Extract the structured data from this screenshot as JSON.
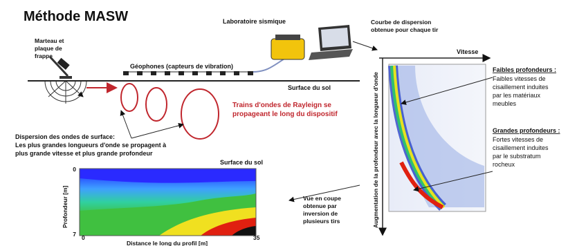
{
  "title": "Méthode MASW",
  "hammer_label": [
    "Marteau et",
    "plaque de",
    "frappe"
  ],
  "lab_label": "Laboratoire sismique",
  "curve_label": [
    "Courbe de dispersion",
    "obtenue pour chaque tir"
  ],
  "geophones_label": "Géophones (capteurs de vibration)",
  "surface_label": "Surface du sol",
  "rayleigh_label": [
    "Trains d'ondes de Rayleign se",
    "propageant le long du dispositif"
  ],
  "dispersion_note": [
    "Dispersion des ondes de surface:",
    "Les plus grandes longueurs d'onde se propagent à",
    "plus grande vitesse et plus grande profondeur"
  ],
  "section": {
    "surface_label": "Surface du sol",
    "y_axis_label": "Profondeur [m]",
    "y_ticks": [
      0,
      7
    ],
    "x_ticks": [
      0,
      35
    ],
    "x_axis_label": "Distance le long du profil [m]"
  },
  "section_label": [
    "Vue en coupe",
    "obtenue par",
    "inversion de",
    "plusieurs tirs"
  ],
  "velocity_label": "Vitesse",
  "depth_axis_label": "Augmentation de la profondeur avec la longueur d'onde",
  "shallow": {
    "heading": "Faibles profondeurs :",
    "lines": [
      "Faibles vitesses de",
      "cisaillement induites",
      "par les matériaux",
      "meubles"
    ]
  },
  "deep": {
    "heading": "Grandes profondeurs :",
    "lines": [
      "Fortes vitesses de",
      "cisaillement induites",
      "par le substratum",
      "rocheux"
    ]
  }
}
